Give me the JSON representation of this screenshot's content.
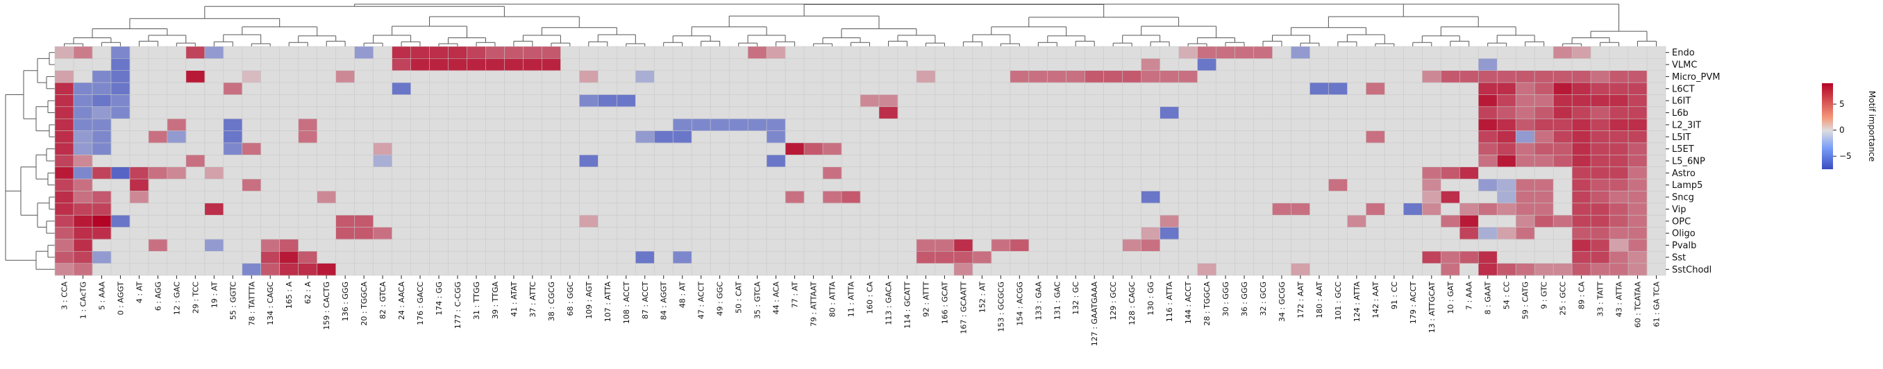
{
  "chart_data": {
    "type": "heatmap",
    "title": "",
    "xlabel": "",
    "ylabel": "",
    "row_labels": [
      "Endo",
      "VLMC",
      "Micro_PVM",
      "L6CT",
      "L6IT",
      "L6b",
      "L2_3IT",
      "L5IT",
      "L5ET",
      "L5_6NP",
      "Astro",
      "Lamp5",
      "Sncg",
      "Vip",
      "OPC",
      "Oligo",
      "Pvalb",
      "Sst",
      "SstChodl"
    ],
    "col_labels": [
      "3 : CCA",
      "1 : CAcTG",
      "5 : AAA",
      "0 : AGGT",
      "4 : AT",
      "6 : AGG",
      "12 : GAC",
      "29 : TCC",
      "19 : AT",
      "55 : GGTC",
      "78 : TATTTA",
      "134 : CAGC",
      "165 : A",
      "62 : A",
      "159 : CACTG",
      "136 : GGG",
      "20 : TGGCA",
      "82 : GTCA",
      "24 : AACA",
      "176 : GACC",
      "174 : GG",
      "177 : C-CGG",
      "31 : TTGG",
      "39 : TTGA",
      "41 : ATAT",
      "37 : ATTC",
      "38 : CGCG",
      "68 : GGC",
      "109 : AGT",
      "107 : ATTA",
      "108 : ACCT",
      "87 : ACCT",
      "84 : AGGT",
      "48 : AT",
      "47 : ACCT",
      "49 : GGC",
      "50 : CAT",
      "35 : GTCA",
      "44 : ACA",
      "77 : AT",
      "79 : ATTAAT",
      "80 : ATTA",
      "11 : ATTA",
      "160 : CA",
      "113 : GACA",
      "114 : GCATT",
      "92 : ATTT",
      "166 : GCAT",
      "167 : GCAATT",
      "152 : AT",
      "153 : GCGCG",
      "154 : ACGG",
      "133 : GAA",
      "131 : GAC",
      "132 : GC",
      "127 : GAATGAAA",
      "129 : GCC",
      "128 : CAGC",
      "130 : GG",
      "116 : ATTA",
      "144 : ACCT",
      "28 : TGGCA",
      "30 : GGG",
      "36 : GGG",
      "32 : GCG",
      "34 : GCGG",
      "172 : AAT",
      "180 : AAT",
      "101 : GCC",
      "124 : ATTA",
      "142 : AAT",
      "91 : CC",
      "179 : ACCT",
      "13 : ATTGCAT",
      "10 : GAT",
      "7 : AAA",
      "8 : GAAT",
      "54 : CC",
      "59 : CATG",
      "9 : GTC",
      "25 : GCC",
      "89 : CA",
      "33 : TATT",
      "43 : ATTA",
      "60 : TCATAA",
      "61 : GA TCA"
    ],
    "cells": [
      [
        0,
        1.5
      ],
      [
        1,
        3.5
      ],
      [
        3,
        -4
      ],
      [
        7,
        6
      ],
      [
        8,
        -3
      ],
      [
        16,
        -3
      ],
      [
        18,
        7
      ],
      [
        19,
        7
      ],
      [
        20,
        7
      ],
      [
        21,
        7
      ],
      [
        22,
        6
      ],
      [
        23,
        5
      ],
      [
        24,
        5
      ],
      [
        25,
        5
      ],
      [
        26,
        5
      ],
      [
        37,
        4
      ],
      [
        38,
        2
      ],
      [
        60,
        1.5
      ],
      [
        61,
        4
      ],
      [
        62,
        4
      ],
      [
        63,
        4
      ],
      [
        64,
        4
      ],
      [
        66,
        -3
      ],
      [
        80,
        3
      ],
      [
        81,
        2
      ],
      [
        3,
        -5
      ],
      [
        18,
        6
      ],
      [
        19,
        7.5
      ],
      [
        20,
        7.5
      ],
      [
        21,
        7.5
      ],
      [
        22,
        7.5
      ],
      [
        23,
        7.5
      ],
      [
        24,
        7.5
      ],
      [
        25,
        7.5
      ],
      [
        26,
        7.5
      ],
      [
        58,
        3
      ],
      [
        61,
        -5
      ],
      [
        76,
        -3
      ],
      [
        0,
        2
      ],
      [
        2,
        -4
      ],
      [
        3,
        -5
      ],
      [
        7,
        8
      ],
      [
        10,
        1
      ],
      [
        15,
        3
      ],
      [
        28,
        2
      ],
      [
        31,
        -2
      ],
      [
        46,
        2
      ],
      [
        51,
        4
      ],
      [
        52,
        4
      ],
      [
        53,
        4
      ],
      [
        54,
        4
      ],
      [
        55,
        5
      ],
      [
        56,
        5
      ],
      [
        57,
        5
      ],
      [
        58,
        4
      ],
      [
        59,
        4
      ],
      [
        60,
        4
      ],
      [
        73,
        3
      ],
      [
        74,
        5
      ],
      [
        75,
        5
      ],
      [
        76,
        5
      ],
      [
        77,
        5
      ],
      [
        78,
        5
      ],
      [
        79,
        5
      ],
      [
        80,
        5
      ],
      [
        81,
        5
      ],
      [
        82,
        4
      ],
      [
        83,
        5
      ],
      [
        84,
        5
      ],
      [
        0,
        7
      ],
      [
        1,
        -4
      ],
      [
        2,
        -4
      ],
      [
        3,
        -5
      ],
      [
        9,
        4
      ],
      [
        18,
        -5
      ],
      [
        67,
        -5
      ],
      [
        68,
        -5
      ],
      [
        70,
        4
      ],
      [
        76,
        7
      ],
      [
        77,
        7
      ],
      [
        78,
        4
      ],
      [
        79,
        5
      ],
      [
        80,
        8
      ],
      [
        81,
        7
      ],
      [
        82,
        6
      ],
      [
        83,
        6
      ],
      [
        84,
        6
      ],
      [
        0,
        7
      ],
      [
        1,
        -4
      ],
      [
        2,
        -5
      ],
      [
        3,
        -4
      ],
      [
        28,
        -4
      ],
      [
        29,
        -5
      ],
      [
        30,
        -5
      ],
      [
        43,
        3
      ],
      [
        44,
        3
      ],
      [
        76,
        8
      ],
      [
        77,
        6
      ],
      [
        78,
        4
      ],
      [
        79,
        4
      ],
      [
        80,
        7
      ],
      [
        81,
        7
      ],
      [
        82,
        7
      ],
      [
        83,
        7
      ],
      [
        84,
        6
      ],
      [
        0,
        7
      ],
      [
        1,
        -4
      ],
      [
        2,
        -3
      ],
      [
        3,
        -4
      ],
      [
        44,
        7
      ],
      [
        59,
        -5
      ],
      [
        76,
        6
      ],
      [
        77,
        5
      ],
      [
        78,
        4
      ],
      [
        79,
        5
      ],
      [
        80,
        7
      ],
      [
        81,
        6
      ],
      [
        82,
        5
      ],
      [
        83,
        6
      ],
      [
        84,
        6
      ],
      [
        0,
        7
      ],
      [
        1,
        -4
      ],
      [
        2,
        -4
      ],
      [
        6,
        4
      ],
      [
        9,
        -5
      ],
      [
        13,
        4
      ],
      [
        33,
        -4
      ],
      [
        34,
        -4
      ],
      [
        35,
        -4
      ],
      [
        36,
        -4
      ],
      [
        37,
        -4
      ],
      [
        38,
        -4
      ],
      [
        76,
        8
      ],
      [
        77,
        7
      ],
      [
        78,
        5
      ],
      [
        79,
        6
      ],
      [
        80,
        6
      ],
      [
        81,
        7
      ],
      [
        82,
        6
      ],
      [
        83,
        7
      ],
      [
        84,
        7
      ],
      [
        0,
        7
      ],
      [
        1,
        -3
      ],
      [
        2,
        -4
      ],
      [
        5,
        4
      ],
      [
        6,
        -3
      ],
      [
        9,
        -5
      ],
      [
        13,
        4
      ],
      [
        31,
        -3
      ],
      [
        32,
        -5
      ],
      [
        33,
        -5
      ],
      [
        38,
        -4
      ],
      [
        70,
        4
      ],
      [
        76,
        6
      ],
      [
        77,
        7
      ],
      [
        78,
        -3
      ],
      [
        79,
        4
      ],
      [
        80,
        6
      ],
      [
        81,
        7
      ],
      [
        82,
        6
      ],
      [
        83,
        6
      ],
      [
        84,
        6
      ],
      [
        0,
        7
      ],
      [
        1,
        -3
      ],
      [
        2,
        -4
      ],
      [
        9,
        -4
      ],
      [
        10,
        4
      ],
      [
        17,
        2
      ],
      [
        39,
        8
      ],
      [
        40,
        5
      ],
      [
        41,
        4
      ],
      [
        76,
        5
      ],
      [
        77,
        6
      ],
      [
        78,
        4
      ],
      [
        79,
        5
      ],
      [
        80,
        5
      ],
      [
        81,
        7
      ],
      [
        82,
        6
      ],
      [
        83,
        6
      ],
      [
        84,
        5
      ],
      [
        0,
        6
      ],
      [
        1,
        3
      ],
      [
        7,
        4
      ],
      [
        17,
        -2
      ],
      [
        28,
        -5
      ],
      [
        38,
        -5
      ],
      [
        76,
        4
      ],
      [
        77,
        8
      ],
      [
        78,
        4
      ],
      [
        79,
        4
      ],
      [
        80,
        5
      ],
      [
        81,
        7
      ],
      [
        82,
        6
      ],
      [
        83,
        6
      ],
      [
        84,
        5
      ],
      [
        0,
        8
      ],
      [
        1,
        -4
      ],
      [
        2,
        6
      ],
      [
        3,
        -6
      ],
      [
        4,
        6
      ],
      [
        5,
        4
      ],
      [
        6,
        3
      ],
      [
        8,
        2
      ],
      [
        41,
        4
      ],
      [
        73,
        4
      ],
      [
        74,
        5
      ],
      [
        75,
        7
      ],
      [
        81,
        6
      ],
      [
        82,
        6
      ],
      [
        83,
        6
      ],
      [
        84,
        4
      ],
      [
        0,
        6
      ],
      [
        1,
        4
      ],
      [
        4,
        7
      ],
      [
        10,
        4
      ],
      [
        68,
        4
      ],
      [
        73,
        3
      ],
      [
        76,
        -3
      ],
      [
        77,
        -2
      ],
      [
        78,
        4
      ],
      [
        79,
        4
      ],
      [
        81,
        6
      ],
      [
        82,
        5
      ],
      [
        83,
        5
      ],
      [
        84,
        4
      ],
      [
        0,
        7
      ],
      [
        1,
        4
      ],
      [
        2,
        5
      ],
      [
        4,
        3
      ],
      [
        14,
        3
      ],
      [
        39,
        4
      ],
      [
        41,
        4
      ],
      [
        42,
        5
      ],
      [
        58,
        -5
      ],
      [
        73,
        2
      ],
      [
        74,
        7
      ],
      [
        77,
        -2
      ],
      [
        78,
        4
      ],
      [
        79,
        4
      ],
      [
        81,
        6
      ],
      [
        82,
        5
      ],
      [
        83,
        4
      ],
      [
        84,
        4
      ],
      [
        0,
        7
      ],
      [
        1,
        6
      ],
      [
        2,
        6
      ],
      [
        8,
        7
      ],
      [
        65,
        4
      ],
      [
        66,
        4
      ],
      [
        70,
        4
      ],
      [
        72,
        -5
      ],
      [
        73,
        3
      ],
      [
        75,
        3
      ],
      [
        76,
        4
      ],
      [
        77,
        3
      ],
      [
        78,
        4
      ],
      [
        79,
        4
      ],
      [
        81,
        6
      ],
      [
        82,
        6
      ],
      [
        83,
        5
      ],
      [
        84,
        4
      ],
      [
        0,
        6
      ],
      [
        1,
        8
      ],
      [
        2,
        9
      ],
      [
        3,
        -5
      ],
      [
        15,
        5
      ],
      [
        16,
        5
      ],
      [
        28,
        2
      ],
      [
        59,
        3
      ],
      [
        69,
        3
      ],
      [
        74,
        4
      ],
      [
        75,
        8
      ],
      [
        78,
        3
      ],
      [
        79,
        5
      ],
      [
        80,
        4
      ],
      [
        81,
        6
      ],
      [
        82,
        6
      ],
      [
        83,
        5
      ],
      [
        84,
        4
      ],
      [
        0,
        5
      ],
      [
        1,
        7
      ],
      [
        2,
        7
      ],
      [
        15,
        5
      ],
      [
        16,
        5
      ],
      [
        17,
        4
      ],
      [
        58,
        2
      ],
      [
        59,
        -5
      ],
      [
        75,
        6
      ],
      [
        76,
        -2
      ],
      [
        77,
        2
      ],
      [
        78,
        4
      ],
      [
        81,
        5
      ],
      [
        82,
        5
      ],
      [
        83,
        4
      ],
      [
        84,
        4
      ],
      [
        0,
        4
      ],
      [
        1,
        7
      ],
      [
        5,
        4
      ],
      [
        8,
        -3
      ],
      [
        11,
        4
      ],
      [
        12,
        5
      ],
      [
        46,
        4
      ],
      [
        47,
        4
      ],
      [
        48,
        7
      ],
      [
        50,
        4
      ],
      [
        51,
        5
      ],
      [
        57,
        3
      ],
      [
        58,
        4
      ],
      [
        81,
        7
      ],
      [
        82,
        6
      ],
      [
        83,
        2
      ],
      [
        84,
        4
      ],
      [
        0,
        5
      ],
      [
        1,
        6
      ],
      [
        2,
        -3
      ],
      [
        11,
        6
      ],
      [
        12,
        8
      ],
      [
        13,
        5
      ],
      [
        31,
        -5
      ],
      [
        33,
        -4
      ],
      [
        46,
        5
      ],
      [
        47,
        5
      ],
      [
        48,
        5
      ],
      [
        49,
        4
      ],
      [
        73,
        6
      ],
      [
        74,
        4
      ],
      [
        75,
        5
      ],
      [
        76,
        7
      ],
      [
        81,
        6
      ],
      [
        82,
        6
      ],
      [
        83,
        4
      ],
      [
        84,
        3
      ],
      [
        0,
        3
      ],
      [
        1,
        4
      ],
      [
        10,
        -4
      ],
      [
        11,
        5
      ],
      [
        12,
        7
      ],
      [
        13,
        7
      ],
      [
        14,
        8
      ],
      [
        48,
        3
      ],
      [
        61,
        2
      ],
      [
        66,
        2
      ],
      [
        74,
        4
      ],
      [
        76,
        7
      ],
      [
        77,
        5
      ],
      [
        78,
        4
      ],
      [
        79,
        3
      ],
      [
        80,
        3
      ],
      [
        81,
        5
      ],
      [
        82,
        4
      ],
      [
        83,
        4
      ],
      [
        84,
        3
      ]
    ],
    "colorbar": {
      "label": "Motif importance",
      "ticks": [
        5,
        0,
        -5
      ],
      "range": [
        -7.5,
        9
      ],
      "cmap": "coolwarm"
    },
    "color_low": "#3a4cc0",
    "color_mid": "#dddddd",
    "color_high": "#b40426",
    "grid": true
  }
}
